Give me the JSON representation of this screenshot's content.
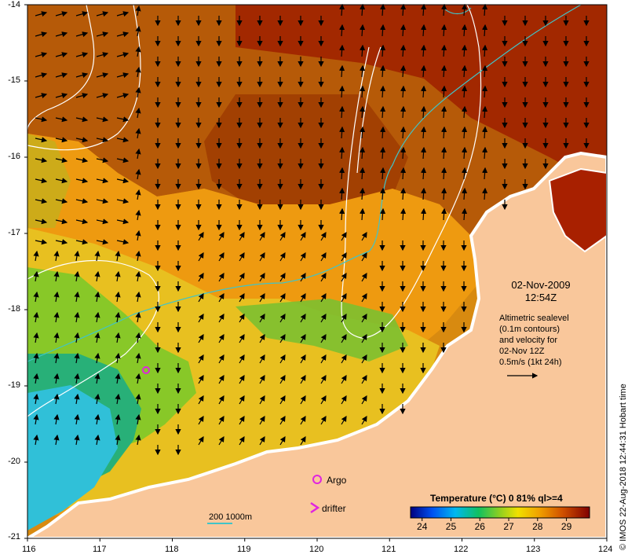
{
  "map": {
    "lon_axis": {
      "min": 116,
      "max": 124,
      "ticks": [
        "116",
        "117",
        "118",
        "119",
        "120",
        "121",
        "122",
        "123",
        "124"
      ]
    },
    "lat_axis": {
      "min": -21,
      "max": -14,
      "ticks": [
        "-14",
        "-15",
        "-16",
        "-17",
        "-18",
        "-19",
        "-20",
        "-21"
      ]
    },
    "date_line1": "02-Nov-2009",
    "date_line2": "12:54Z",
    "info_lines": [
      "Altimetric sealevel",
      "(0.1m contours)",
      "and velocity for",
      "02-Nov 12Z",
      "0.5m/s (1kt 24h)"
    ],
    "legend": {
      "argo_label": "Argo",
      "drifter_label": "drifter",
      "bathy_label": "200  1000m"
    },
    "credit": "© IMOS 22-Aug-2018 12:44:31 Hobart time",
    "colorbar": {
      "title": "Temperature (°C) 0 81% ql>=4",
      "ticks": [
        "24",
        "25",
        "26",
        "27",
        "28",
        "29"
      ],
      "min": 23.6,
      "max": 29.8
    },
    "colors": {
      "land": "#f9c79b",
      "coast": "#ffffff",
      "bathy": "#40c4c8",
      "argo": "#e024e0",
      "warm": "#a02000",
      "cool": "#30c8e8"
    }
  }
}
